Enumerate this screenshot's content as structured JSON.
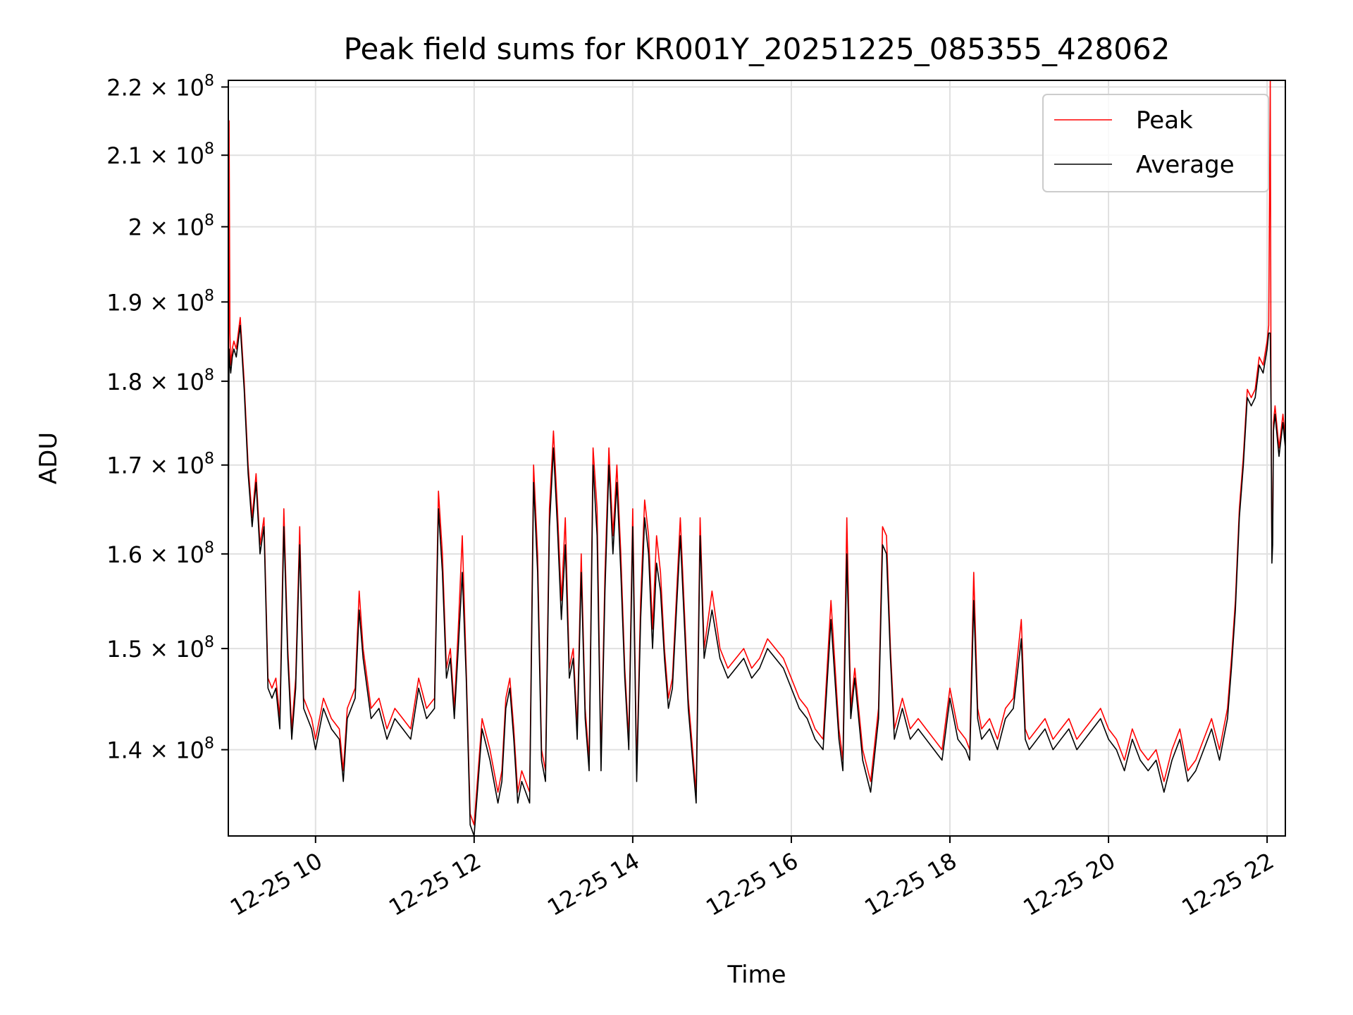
{
  "chart_data": {
    "type": "line",
    "title": "Peak field sums for KR001Y_20251225_085355_428062",
    "xlabel": "Time",
    "ylabel": "ADU",
    "yscale": "log",
    "grid": true,
    "legend_position": "top-right",
    "xlim": [
      8.9,
      22.23
    ],
    "ylim": [
      132000000,
      221000000
    ],
    "x_ticks": [
      {
        "value": 10,
        "label": "12-25 10"
      },
      {
        "value": 12,
        "label": "12-25 12"
      },
      {
        "value": 14,
        "label": "12-25 14"
      },
      {
        "value": 16,
        "label": "12-25 16"
      },
      {
        "value": 18,
        "label": "12-25 18"
      },
      {
        "value": 20,
        "label": "12-25 20"
      },
      {
        "value": 22,
        "label": "12-25 22"
      }
    ],
    "y_ticks": [
      {
        "value": 140000000,
        "mantissa": "1.4",
        "label": "1.4 × 10^8"
      },
      {
        "value": 150000000,
        "mantissa": "1.5",
        "label": "1.5 × 10^8"
      },
      {
        "value": 160000000,
        "mantissa": "1.6",
        "label": "1.6 × 10^8"
      },
      {
        "value": 170000000,
        "mantissa": "1.7",
        "label": "1.7 × 10^8"
      },
      {
        "value": 180000000,
        "mantissa": "1.8",
        "label": "1.8 × 10^8"
      },
      {
        "value": 190000000,
        "mantissa": "1.9",
        "label": "1.9 × 10^8"
      },
      {
        "value": 200000000,
        "mantissa": "2",
        "label": "2 × 10^8"
      },
      {
        "value": 210000000,
        "mantissa": "2.1",
        "label": "2.1 × 10^8"
      },
      {
        "value": 220000000,
        "mantissa": "2.2",
        "label": "2.2 × 10^8"
      }
    ],
    "x_unit": "hour of 2025-12-25",
    "y_unit_multiplier": 100000000,
    "series": [
      {
        "name": "Peak",
        "color": "#ff0000",
        "x": [
          8.9,
          8.91,
          8.92,
          8.93,
          8.95,
          8.97,
          9.0,
          9.05,
          9.1,
          9.15,
          9.2,
          9.25,
          9.3,
          9.35,
          9.4,
          9.45,
          9.5,
          9.55,
          9.6,
          9.65,
          9.7,
          9.75,
          9.8,
          9.85,
          9.9,
          9.95,
          10.0,
          10.1,
          10.2,
          10.3,
          10.35,
          10.4,
          10.5,
          10.55,
          10.6,
          10.7,
          10.8,
          10.9,
          11.0,
          11.1,
          11.2,
          11.3,
          11.4,
          11.5,
          11.55,
          11.6,
          11.65,
          11.7,
          11.75,
          11.8,
          11.85,
          11.9,
          11.95,
          12.0,
          12.1,
          12.2,
          12.3,
          12.35,
          12.4,
          12.45,
          12.5,
          12.55,
          12.6,
          12.65,
          12.7,
          12.75,
          12.8,
          12.85,
          12.9,
          12.95,
          13.0,
          13.05,
          13.1,
          13.15,
          13.2,
          13.25,
          13.3,
          13.35,
          13.4,
          13.45,
          13.5,
          13.55,
          13.6,
          13.65,
          13.7,
          13.75,
          13.8,
          13.85,
          13.9,
          13.95,
          14.0,
          14.05,
          14.1,
          14.15,
          14.2,
          14.25,
          14.3,
          14.35,
          14.4,
          14.45,
          14.5,
          14.6,
          14.7,
          14.8,
          14.85,
          14.9,
          15.0,
          15.1,
          15.2,
          15.3,
          15.4,
          15.5,
          15.6,
          15.7,
          15.8,
          15.9,
          16.0,
          16.1,
          16.2,
          16.3,
          16.4,
          16.5,
          16.6,
          16.65,
          16.7,
          16.75,
          16.8,
          16.9,
          17.0,
          17.1,
          17.15,
          17.2,
          17.25,
          17.3,
          17.4,
          17.5,
          17.6,
          17.7,
          17.8,
          17.9,
          18.0,
          18.1,
          18.2,
          18.25,
          18.3,
          18.35,
          18.4,
          18.5,
          18.6,
          18.7,
          18.8,
          18.9,
          18.95,
          19.0,
          19.1,
          19.2,
          19.3,
          19.4,
          19.5,
          19.6,
          19.7,
          19.8,
          19.9,
          20.0,
          20.1,
          20.2,
          20.3,
          20.4,
          20.5,
          20.6,
          20.7,
          20.8,
          20.9,
          21.0,
          21.1,
          21.2,
          21.3,
          21.4,
          21.45,
          21.5,
          21.55,
          21.6,
          21.65,
          21.7,
          21.75,
          21.8,
          21.85,
          21.9,
          21.95,
          22.0,
          22.02,
          22.04,
          22.05,
          22.06,
          22.07,
          22.08,
          22.1,
          22.12,
          22.15,
          22.2,
          22.23
        ],
        "values": [
          1.59,
          2.15,
          1.86,
          1.82,
          1.84,
          1.85,
          1.84,
          1.88,
          1.8,
          1.7,
          1.64,
          1.69,
          1.61,
          1.64,
          1.47,
          1.46,
          1.47,
          1.43,
          1.65,
          1.5,
          1.42,
          1.47,
          1.63,
          1.45,
          1.44,
          1.43,
          1.41,
          1.45,
          1.43,
          1.42,
          1.38,
          1.44,
          1.46,
          1.56,
          1.5,
          1.44,
          1.45,
          1.42,
          1.44,
          1.43,
          1.42,
          1.47,
          1.44,
          1.45,
          1.67,
          1.6,
          1.48,
          1.5,
          1.44,
          1.52,
          1.62,
          1.48,
          1.34,
          1.33,
          1.43,
          1.4,
          1.36,
          1.38,
          1.45,
          1.47,
          1.42,
          1.36,
          1.38,
          1.37,
          1.36,
          1.7,
          1.6,
          1.4,
          1.38,
          1.65,
          1.74,
          1.65,
          1.55,
          1.64,
          1.48,
          1.5,
          1.42,
          1.6,
          1.44,
          1.39,
          1.72,
          1.65,
          1.39,
          1.58,
          1.72,
          1.62,
          1.7,
          1.6,
          1.48,
          1.41,
          1.65,
          1.38,
          1.55,
          1.66,
          1.62,
          1.52,
          1.62,
          1.58,
          1.5,
          1.45,
          1.47,
          1.64,
          1.45,
          1.36,
          1.64,
          1.5,
          1.56,
          1.5,
          1.48,
          1.49,
          1.5,
          1.48,
          1.49,
          1.51,
          1.5,
          1.49,
          1.47,
          1.45,
          1.44,
          1.42,
          1.41,
          1.55,
          1.42,
          1.39,
          1.64,
          1.44,
          1.48,
          1.4,
          1.37,
          1.44,
          1.63,
          1.62,
          1.5,
          1.42,
          1.45,
          1.42,
          1.43,
          1.42,
          1.41,
          1.4,
          1.46,
          1.42,
          1.41,
          1.4,
          1.58,
          1.44,
          1.42,
          1.43,
          1.41,
          1.44,
          1.45,
          1.53,
          1.42,
          1.41,
          1.42,
          1.43,
          1.41,
          1.42,
          1.43,
          1.41,
          1.42,
          1.43,
          1.44,
          1.42,
          1.41,
          1.39,
          1.42,
          1.4,
          1.39,
          1.4,
          1.37,
          1.4,
          1.42,
          1.38,
          1.39,
          1.41,
          1.43,
          1.4,
          1.42,
          1.44,
          1.49,
          1.55,
          1.65,
          1.71,
          1.79,
          1.78,
          1.79,
          1.83,
          1.82,
          1.85,
          1.87,
          2.21,
          1.78,
          1.6,
          1.62,
          1.75,
          1.77,
          1.75,
          1.72,
          1.76,
          1.73
        ]
      },
      {
        "name": "Average",
        "color": "#000000",
        "x": [
          8.9,
          8.91,
          8.92,
          8.93,
          8.95,
          8.97,
          9.0,
          9.05,
          9.1,
          9.15,
          9.2,
          9.25,
          9.3,
          9.35,
          9.4,
          9.45,
          9.5,
          9.55,
          9.6,
          9.65,
          9.7,
          9.75,
          9.8,
          9.85,
          9.9,
          9.95,
          10.0,
          10.1,
          10.2,
          10.3,
          10.35,
          10.4,
          10.5,
          10.55,
          10.6,
          10.7,
          10.8,
          10.9,
          11.0,
          11.1,
          11.2,
          11.3,
          11.4,
          11.5,
          11.55,
          11.6,
          11.65,
          11.7,
          11.75,
          11.8,
          11.85,
          11.9,
          11.95,
          12.0,
          12.1,
          12.2,
          12.3,
          12.35,
          12.4,
          12.45,
          12.5,
          12.55,
          12.6,
          12.65,
          12.7,
          12.75,
          12.8,
          12.85,
          12.9,
          12.95,
          13.0,
          13.05,
          13.1,
          13.15,
          13.2,
          13.25,
          13.3,
          13.35,
          13.4,
          13.45,
          13.5,
          13.55,
          13.6,
          13.65,
          13.7,
          13.75,
          13.8,
          13.85,
          13.9,
          13.95,
          14.0,
          14.05,
          14.1,
          14.15,
          14.2,
          14.25,
          14.3,
          14.35,
          14.4,
          14.45,
          14.5,
          14.6,
          14.7,
          14.8,
          14.85,
          14.9,
          15.0,
          15.1,
          15.2,
          15.3,
          15.4,
          15.5,
          15.6,
          15.7,
          15.8,
          15.9,
          16.0,
          16.1,
          16.2,
          16.3,
          16.4,
          16.5,
          16.6,
          16.65,
          16.7,
          16.75,
          16.8,
          16.9,
          17.0,
          17.1,
          17.15,
          17.2,
          17.25,
          17.3,
          17.4,
          17.5,
          17.6,
          17.7,
          17.8,
          17.9,
          18.0,
          18.1,
          18.2,
          18.25,
          18.3,
          18.35,
          18.4,
          18.5,
          18.6,
          18.7,
          18.8,
          18.9,
          18.95,
          19.0,
          19.1,
          19.2,
          19.3,
          19.4,
          19.5,
          19.6,
          19.7,
          19.8,
          19.9,
          20.0,
          20.1,
          20.2,
          20.3,
          20.4,
          20.5,
          20.6,
          20.7,
          20.8,
          20.9,
          21.0,
          21.1,
          21.2,
          21.3,
          21.4,
          21.45,
          21.5,
          21.55,
          21.6,
          21.65,
          21.7,
          21.75,
          21.8,
          21.85,
          21.9,
          21.95,
          22.0,
          22.02,
          22.04,
          22.05,
          22.06,
          22.07,
          22.08,
          22.1,
          22.12,
          22.15,
          22.2,
          22.23
        ],
        "values": [
          1.59,
          1.84,
          1.82,
          1.81,
          1.83,
          1.84,
          1.83,
          1.87,
          1.79,
          1.69,
          1.63,
          1.68,
          1.6,
          1.63,
          1.46,
          1.45,
          1.46,
          1.42,
          1.63,
          1.49,
          1.41,
          1.46,
          1.61,
          1.44,
          1.43,
          1.42,
          1.4,
          1.44,
          1.42,
          1.41,
          1.37,
          1.43,
          1.45,
          1.54,
          1.49,
          1.43,
          1.44,
          1.41,
          1.43,
          1.42,
          1.41,
          1.46,
          1.43,
          1.44,
          1.65,
          1.58,
          1.47,
          1.49,
          1.43,
          1.5,
          1.58,
          1.47,
          1.33,
          1.32,
          1.42,
          1.39,
          1.35,
          1.37,
          1.44,
          1.46,
          1.41,
          1.35,
          1.37,
          1.36,
          1.35,
          1.68,
          1.58,
          1.39,
          1.37,
          1.63,
          1.72,
          1.63,
          1.53,
          1.61,
          1.47,
          1.49,
          1.41,
          1.58,
          1.43,
          1.38,
          1.7,
          1.62,
          1.38,
          1.56,
          1.7,
          1.6,
          1.68,
          1.58,
          1.47,
          1.4,
          1.63,
          1.37,
          1.53,
          1.64,
          1.6,
          1.5,
          1.59,
          1.56,
          1.49,
          1.44,
          1.46,
          1.62,
          1.44,
          1.35,
          1.62,
          1.49,
          1.54,
          1.49,
          1.47,
          1.48,
          1.49,
          1.47,
          1.48,
          1.5,
          1.49,
          1.48,
          1.46,
          1.44,
          1.43,
          1.41,
          1.4,
          1.53,
          1.41,
          1.38,
          1.6,
          1.43,
          1.47,
          1.39,
          1.36,
          1.43,
          1.61,
          1.6,
          1.49,
          1.41,
          1.44,
          1.41,
          1.42,
          1.41,
          1.4,
          1.39,
          1.45,
          1.41,
          1.4,
          1.39,
          1.55,
          1.43,
          1.41,
          1.42,
          1.4,
          1.43,
          1.44,
          1.51,
          1.41,
          1.4,
          1.41,
          1.42,
          1.4,
          1.41,
          1.42,
          1.4,
          1.41,
          1.42,
          1.43,
          1.41,
          1.4,
          1.38,
          1.41,
          1.39,
          1.38,
          1.39,
          1.36,
          1.39,
          1.41,
          1.37,
          1.38,
          1.4,
          1.42,
          1.39,
          1.41,
          1.43,
          1.48,
          1.54,
          1.64,
          1.7,
          1.78,
          1.77,
          1.78,
          1.82,
          1.81,
          1.84,
          1.86,
          1.86,
          1.77,
          1.59,
          1.61,
          1.74,
          1.76,
          1.74,
          1.71,
          1.75,
          1.72
        ]
      }
    ]
  }
}
